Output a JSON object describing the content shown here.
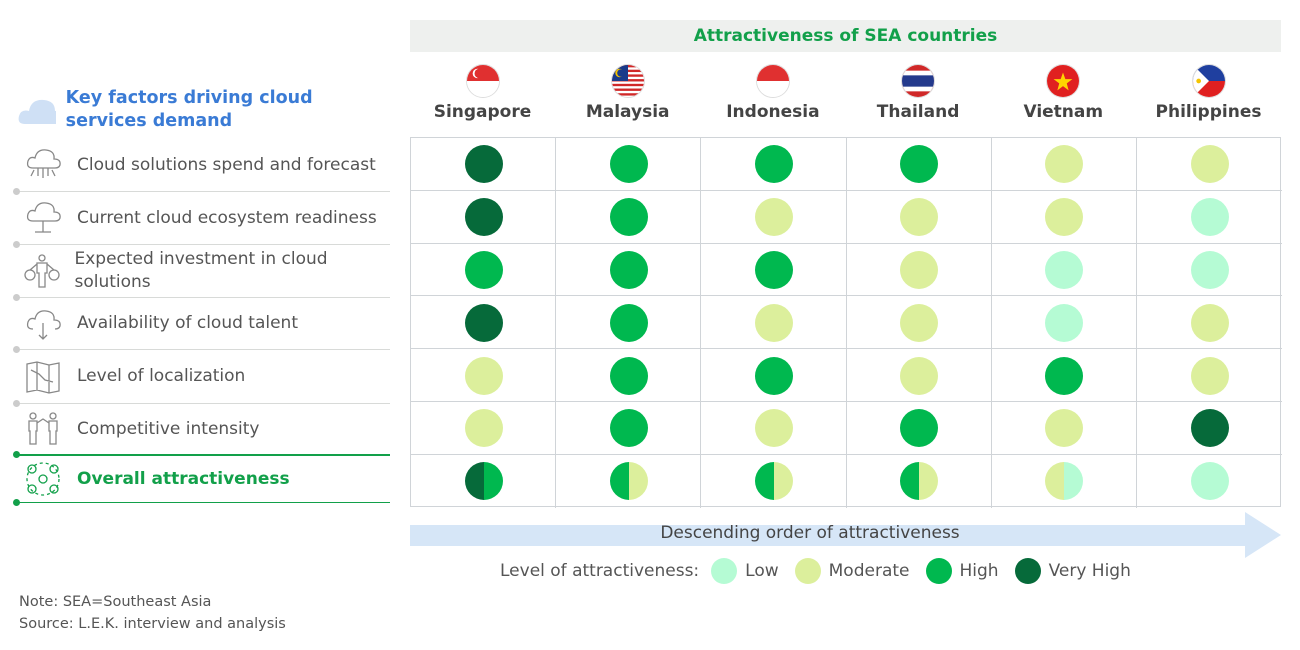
{
  "header": {
    "title": "Attractiveness of SEA countries"
  },
  "countries": [
    "Singapore",
    "Malaysia",
    "Indonesia",
    "Thailand",
    "Vietnam",
    "Philippines"
  ],
  "left": {
    "title": "Key factors driving cloud services demand",
    "factors": [
      {
        "label": "Cloud solutions spend and forecast",
        "icon": "cloud-circuit-icon"
      },
      {
        "label": "Current cloud ecosystem readiness",
        "icon": "cloud-network-icon"
      },
      {
        "label": "Expected investment in cloud solutions",
        "icon": "person-money-bags-icon"
      },
      {
        "label": "Availability of cloud talent",
        "icon": "cloud-download-icon"
      },
      {
        "label": "Level of localization",
        "icon": "map-icon"
      },
      {
        "label": "Competitive intensity",
        "icon": "people-competing-icon"
      },
      {
        "label": "Overall attractiveness",
        "icon": "network-nodes-icon"
      }
    ]
  },
  "colors": {
    "Low": "#b5fbd4",
    "Moderate": "#dcef9c",
    "High": "#00b84f",
    "Very High": "#066a3a",
    "accent": "#12a04a",
    "title_blue": "#3a7bd5",
    "arrow": "#d6e6f7"
  },
  "ratings": [
    [
      [
        "Very High"
      ],
      [
        "High"
      ],
      [
        "High"
      ],
      [
        "High"
      ],
      [
        "Moderate"
      ],
      [
        "Moderate"
      ]
    ],
    [
      [
        "Very High"
      ],
      [
        "High"
      ],
      [
        "Moderate"
      ],
      [
        "Moderate"
      ],
      [
        "Moderate"
      ],
      [
        "Low"
      ]
    ],
    [
      [
        "High"
      ],
      [
        "High"
      ],
      [
        "High"
      ],
      [
        "Moderate"
      ],
      [
        "Low"
      ],
      [
        "Low"
      ]
    ],
    [
      [
        "Very High"
      ],
      [
        "High"
      ],
      [
        "Moderate"
      ],
      [
        "Moderate"
      ],
      [
        "Low"
      ],
      [
        "Moderate"
      ]
    ],
    [
      [
        "Moderate"
      ],
      [
        "High"
      ],
      [
        "High"
      ],
      [
        "Moderate"
      ],
      [
        "High"
      ],
      [
        "Moderate"
      ]
    ],
    [
      [
        "Moderate"
      ],
      [
        "High"
      ],
      [
        "Moderate"
      ],
      [
        "High"
      ],
      [
        "Moderate"
      ],
      [
        "Very High"
      ]
    ],
    [
      [
        "Very High",
        "High"
      ],
      [
        "High",
        "Moderate"
      ],
      [
        "High",
        "Moderate"
      ],
      [
        "High",
        "Moderate"
      ],
      [
        "Moderate",
        "Low"
      ],
      [
        "Low"
      ]
    ]
  ],
  "arrow": {
    "label": "Descending order of attractiveness"
  },
  "legend": {
    "title": "Level of attractiveness:",
    "items": [
      "Low",
      "Moderate",
      "High",
      "Very High"
    ]
  },
  "notes": {
    "note": "Note: SEA=Southeast Asia",
    "source": "Source: L.E.K. interview and analysis"
  }
}
